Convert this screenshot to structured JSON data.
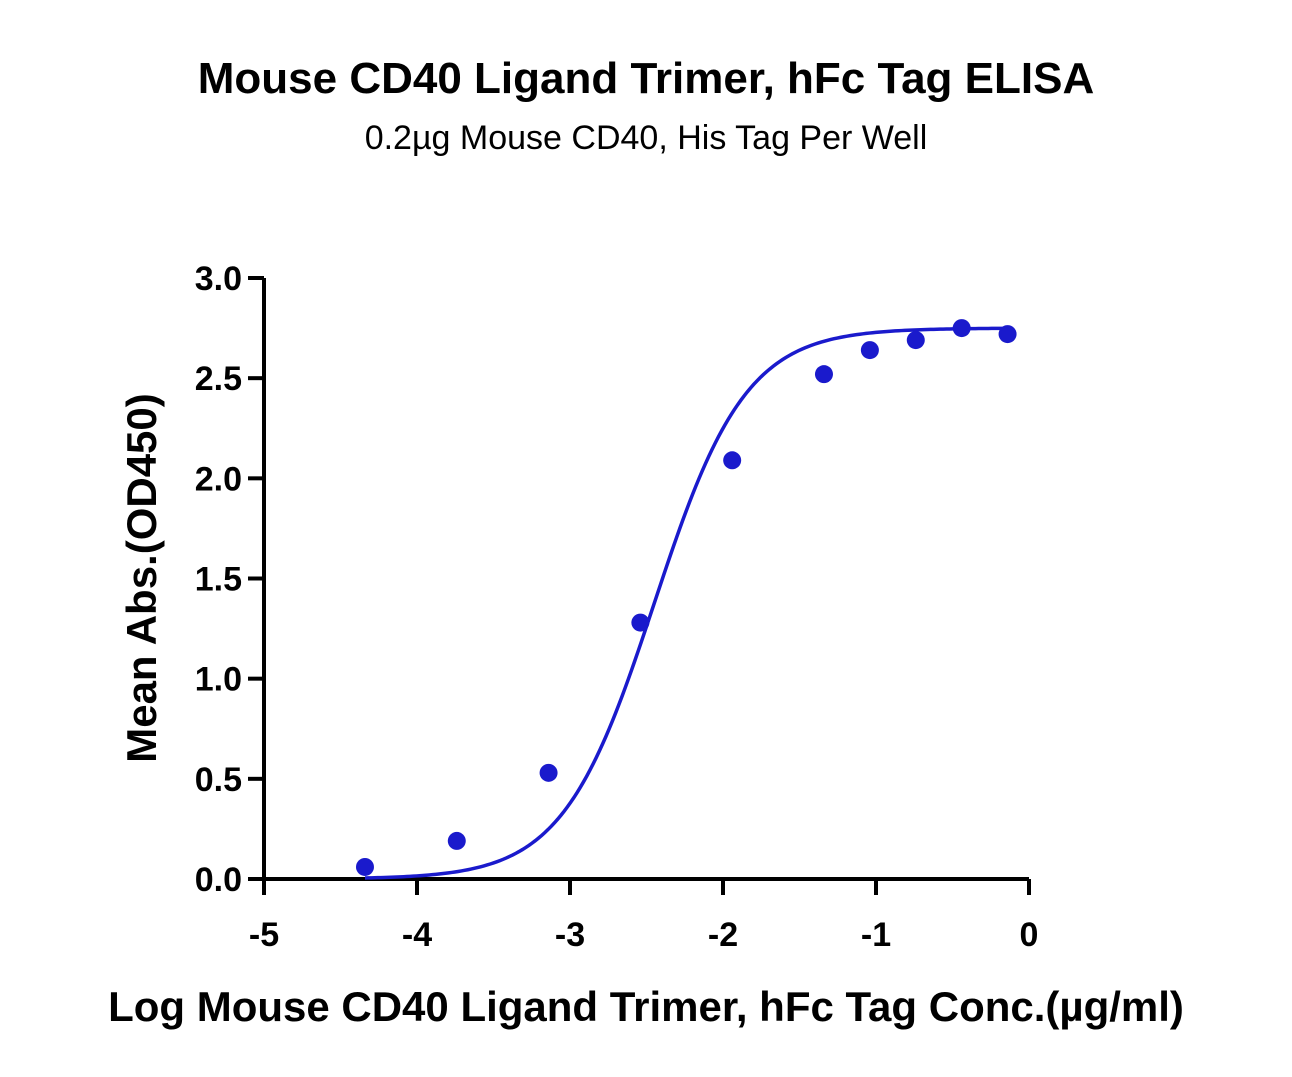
{
  "chart_data": {
    "type": "scatter",
    "title": "Mouse CD40 Ligand Trimer, hFc Tag ELISA",
    "subtitle": "0.2µg Mouse CD40, His Tag Per Well",
    "xlabel": "Log Mouse CD40 Ligand Trimer, hFc Tag Conc.(µg/ml)",
    "ylabel": "Mean Abs.(OD450)",
    "xlim": [
      -5,
      0
    ],
    "ylim": [
      0,
      3.0
    ],
    "x_ticks": [
      "-5",
      "-4",
      "-3",
      "-2",
      "-1",
      "0"
    ],
    "y_ticks": [
      "0.0",
      "0.5",
      "1.0",
      "1.5",
      "2.0",
      "2.5",
      "3.0"
    ],
    "grid": false,
    "fit": "4-parameter logistic",
    "colors": {
      "series": "#1a1acc",
      "axis": "#000000"
    },
    "series": [
      {
        "x": [
          -4.34,
          -3.74,
          -3.14,
          -2.54,
          -1.94,
          -1.34,
          -1.04,
          -0.74,
          -0.44,
          -0.14
        ],
        "y": [
          0.06,
          0.19,
          0.53,
          1.28,
          2.09,
          2.52,
          2.64,
          2.69,
          2.75,
          2.72
        ]
      }
    ]
  }
}
